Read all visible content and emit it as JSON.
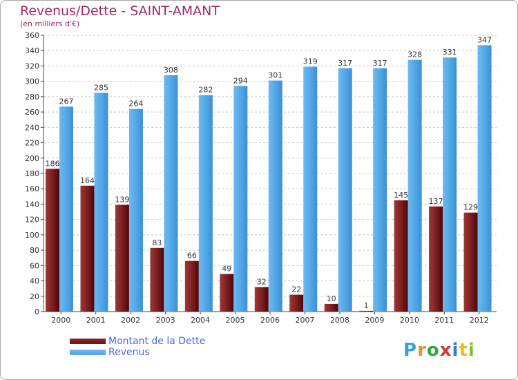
{
  "chart_data": {
    "type": "bar",
    "title": "Revenus/Dette - SAINT-AMANT",
    "subtitle": "(en milliers d'€)",
    "categories": [
      "2000",
      "2001",
      "2002",
      "2003",
      "2004",
      "2005",
      "2006",
      "2007",
      "2008",
      "2009",
      "2010",
      "2011",
      "2012"
    ],
    "series": [
      {
        "name": "Montant de la Dette",
        "color": "#6b0f12",
        "values": [
          186,
          164,
          139,
          83,
          66,
          49,
          32,
          22,
          10,
          1,
          145,
          137,
          129
        ]
      },
      {
        "name": "Revenus",
        "color": "#4ea4e6",
        "values": [
          267,
          285,
          264,
          308,
          282,
          294,
          301,
          319,
          317,
          317,
          328,
          331,
          347
        ]
      }
    ],
    "ylim": [
      0,
      360
    ],
    "ytick_step": 20,
    "grid": true,
    "legend_position": "bottom-left",
    "bar_labels": true
  },
  "colors": {
    "title": "#9e2a66",
    "legend_text": "#5266d6",
    "grid": "#c8c8c8",
    "axis": "#444444"
  },
  "logo": {
    "text": "Proxiti",
    "letter_colors": [
      "#3aa0d8",
      "#e8902a",
      "#2fa84a",
      "#d63a3a",
      "#2f7fd0",
      "#e8c020",
      "#7fbf3f"
    ]
  }
}
